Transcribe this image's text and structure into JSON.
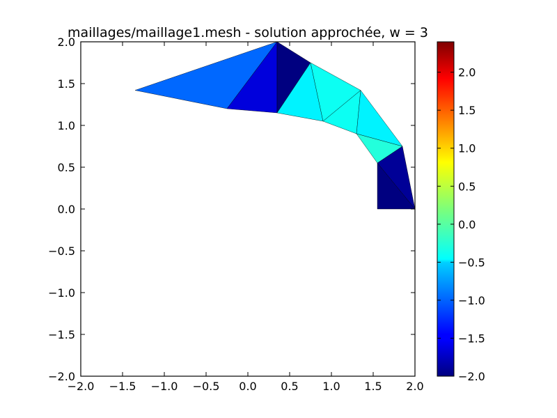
{
  "chart_data": {
    "type": "heatmap",
    "subtype": "triangular-mesh",
    "title": "maillages/maillage1.mesh - solution approchée, w = 3",
    "xlabel": "",
    "ylabel": "",
    "xlim": [
      -2.0,
      2.0
    ],
    "ylim": [
      -2.0,
      2.0
    ],
    "xticks": [
      "−2.0",
      "−1.5",
      "−1.0",
      "−0.5",
      "0.0",
      "0.5",
      "1.0",
      "1.5",
      "2.0"
    ],
    "yticks": [
      "−2.0",
      "−1.5",
      "−1.0",
      "−0.5",
      "0.0",
      "0.5",
      "1.0",
      "1.5",
      "2.0"
    ],
    "grid": false,
    "colormap": "jet",
    "colorbar": {
      "range": [
        -2.0,
        2.4
      ],
      "ticks": [
        "−2.0",
        "−1.5",
        "−1.0",
        "−0.5",
        "0.0",
        "0.5",
        "1.0",
        "1.5",
        "2.0"
      ],
      "position": "right"
    },
    "triangles": [
      {
        "p": [
          [
            -0.25,
            1.2
          ],
          [
            0.35,
            2.0
          ],
          [
            -1.35,
            1.42
          ]
        ],
        "v": -1.0
      },
      {
        "p": [
          [
            -0.25,
            1.2
          ],
          [
            0.35,
            2.0
          ],
          [
            0.35,
            1.15
          ]
        ],
        "v": -1.6
      },
      {
        "p": [
          [
            0.35,
            2.0
          ],
          [
            0.75,
            1.75
          ],
          [
            0.35,
            1.15
          ]
        ],
        "v": -2.0
      },
      {
        "p": [
          [
            0.35,
            1.15
          ],
          [
            0.75,
            1.75
          ],
          [
            0.9,
            1.05
          ]
        ],
        "v": -0.4
      },
      {
        "p": [
          [
            0.9,
            1.05
          ],
          [
            0.75,
            1.75
          ],
          [
            1.35,
            1.42
          ]
        ],
        "v": -0.3
      },
      {
        "p": [
          [
            0.9,
            1.05
          ],
          [
            1.35,
            1.42
          ],
          [
            1.3,
            0.9
          ]
        ],
        "v": -0.3
      },
      {
        "p": [
          [
            1.3,
            0.9
          ],
          [
            1.35,
            1.42
          ],
          [
            1.85,
            0.75
          ]
        ],
        "v": -0.4
      },
      {
        "p": [
          [
            1.3,
            0.9
          ],
          [
            1.85,
            0.75
          ],
          [
            1.55,
            0.55
          ]
        ],
        "v": -0.2
      },
      {
        "p": [
          [
            1.55,
            0.55
          ],
          [
            1.85,
            0.75
          ],
          [
            2.0,
            0.0
          ]
        ],
        "v": -1.9
      },
      {
        "p": [
          [
            1.55,
            0.55
          ],
          [
            2.0,
            0.0
          ],
          [
            1.55,
            0.0
          ]
        ],
        "v": -2.1
      }
    ]
  }
}
